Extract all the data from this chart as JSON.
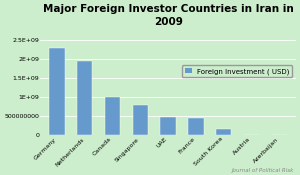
{
  "title": "Major Foreign Investor Countries in Iran in\n2009",
  "categories": [
    "Germany",
    "Netherlands",
    "Canada",
    "Singapore",
    "UAE",
    "France",
    "South Korea",
    "Austria",
    "Azerbaijan"
  ],
  "values": [
    2300000000,
    1950000000,
    1000000000,
    800000000,
    480000000,
    450000000,
    160000000,
    15000000,
    10000000
  ],
  "bar_color": "#6699cc",
  "background_color": "#cceecc",
  "plot_bg_color": "#cceecc",
  "ylim": [
    0,
    2800000000.0
  ],
  "yticks": [
    0,
    500000000,
    1000000000,
    1500000000,
    2000000000,
    2500000000
  ],
  "ytick_labels": [
    "0",
    "500000000",
    "1E+09",
    "1.5E+09",
    "2E+09",
    "2.5E+09"
  ],
  "legend_label": "Foreign Investment ( USD)",
  "source_text": "Journal of Political Risk",
  "title_fontsize": 7.5,
  "tick_fontsize": 4.5,
  "legend_fontsize": 5,
  "source_fontsize": 4
}
